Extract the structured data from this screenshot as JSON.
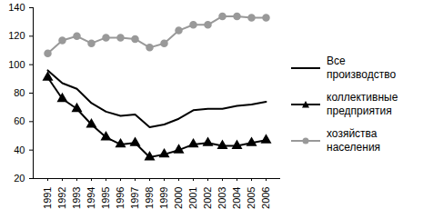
{
  "chart_data": {
    "type": "line",
    "categories": [
      "1991",
      "1992",
      "1993",
      "1994",
      "1995",
      "1996",
      "1997",
      "1998",
      "1999",
      "2000",
      "2001",
      "2002",
      "2003",
      "2004",
      "2005",
      "2006"
    ],
    "series": [
      {
        "name": "Все производство",
        "color": "#000000",
        "marker": "none",
        "line_style": "solid",
        "values": [
          96,
          87,
          83,
          73,
          67,
          64,
          65,
          56,
          58,
          62,
          68,
          69,
          69,
          71,
          72,
          74
        ]
      },
      {
        "name": "коллективные предприятия",
        "color": "#000000",
        "marker": "triangle",
        "line_style": "solid",
        "values": [
          91,
          76,
          69,
          58,
          49,
          44,
          45,
          35,
          37,
          40,
          44,
          45,
          43,
          43,
          45,
          47
        ]
      },
      {
        "name": "хозяйства населения",
        "color": "#999999",
        "marker": "circle",
        "line_style": "solid",
        "values": [
          108,
          117,
          120,
          115,
          119,
          119,
          118,
          112,
          115,
          124,
          128,
          128,
          134,
          134,
          133,
          133
        ]
      }
    ],
    "ylim": [
      20,
      140
    ],
    "yticks": [
      20,
      40,
      60,
      80,
      100,
      120,
      140
    ],
    "grid": false,
    "legend": "right"
  }
}
